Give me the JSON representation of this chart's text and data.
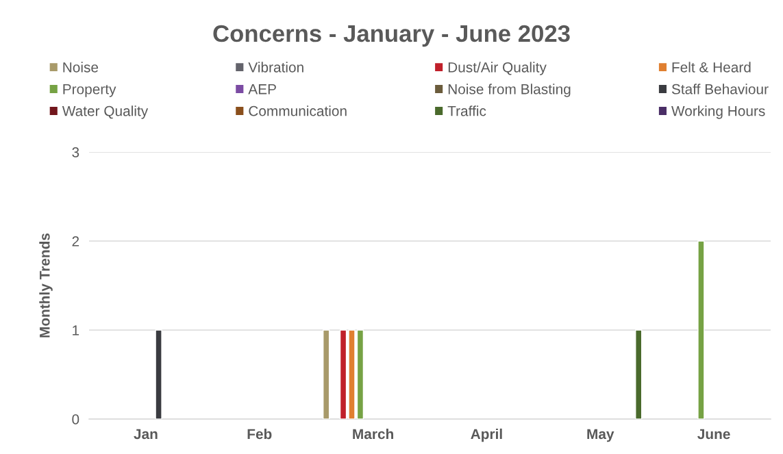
{
  "chart_data": {
    "type": "bar",
    "title": "Concerns - January - June 2023",
    "ylabel": "Monthly Trends",
    "categories": [
      "Jan",
      "Feb",
      "March",
      "April",
      "May",
      "June"
    ],
    "series": [
      {
        "name": "Noise",
        "color": "#a89a6a",
        "values": [
          null,
          null,
          1,
          null,
          null,
          null
        ]
      },
      {
        "name": "Vibration",
        "color": "#63636b",
        "values": [
          null,
          null,
          null,
          null,
          null,
          null
        ]
      },
      {
        "name": "Dust/Air Quality",
        "color": "#c0202a",
        "values": [
          null,
          null,
          1,
          null,
          null,
          null
        ]
      },
      {
        "name": "Felt & Heard",
        "color": "#e07f30",
        "values": [
          null,
          null,
          1,
          null,
          null,
          null
        ]
      },
      {
        "name": "Property",
        "color": "#76a244",
        "values": [
          null,
          null,
          1,
          null,
          null,
          2
        ]
      },
      {
        "name": "AEP",
        "color": "#7b4ba3",
        "values": [
          null,
          null,
          null,
          null,
          null,
          null
        ]
      },
      {
        "name": "Noise from Blasting",
        "color": "#6b5c3c",
        "values": [
          null,
          null,
          null,
          null,
          null,
          null
        ]
      },
      {
        "name": "Staff Behaviour",
        "color": "#3a3b40",
        "values": [
          1,
          null,
          null,
          null,
          null,
          null
        ]
      },
      {
        "name": "Water Quality",
        "color": "#72161c",
        "values": [
          null,
          null,
          null,
          null,
          null,
          null
        ]
      },
      {
        "name": "Communication",
        "color": "#8a4f1c",
        "values": [
          null,
          null,
          null,
          null,
          null,
          null
        ]
      },
      {
        "name": "Traffic",
        "color": "#4a6a2c",
        "values": [
          null,
          null,
          null,
          null,
          1,
          null
        ]
      },
      {
        "name": "Working Hours",
        "color": "#4a2e66",
        "values": [
          null,
          null,
          null,
          null,
          null,
          null
        ]
      }
    ],
    "ylim": [
      0,
      3
    ],
    "yticks": [
      0,
      1,
      2,
      3
    ],
    "grid": "y",
    "legend": "top"
  }
}
